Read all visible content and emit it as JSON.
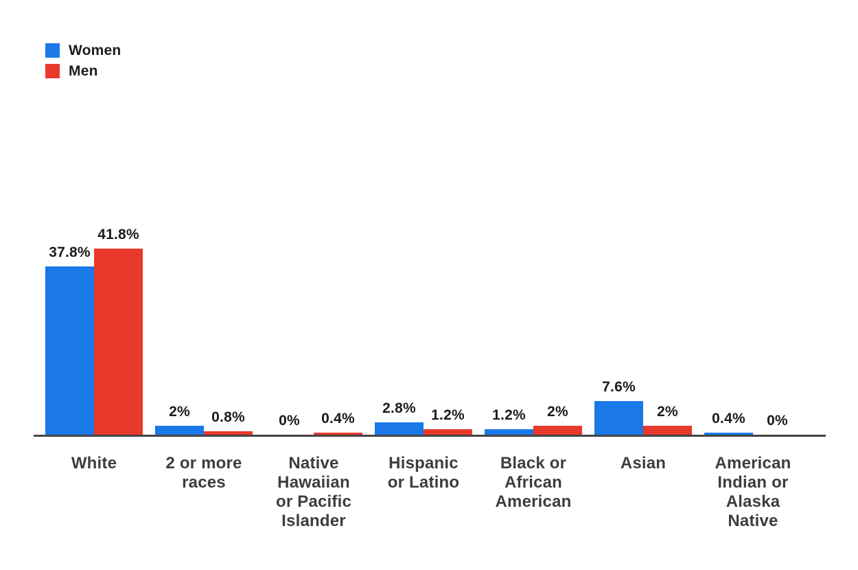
{
  "legend": {
    "items": [
      {
        "label": "Women",
        "color": "#1a78e8"
      },
      {
        "label": "Men",
        "color": "#e8392c"
      }
    ]
  },
  "chart_data": {
    "type": "bar",
    "title": "",
    "xlabel": "",
    "ylabel": "",
    "grid": false,
    "legend_position": "top-left",
    "ylim": [
      0,
      45
    ],
    "unit": "%",
    "categories": [
      "White",
      "2 or more races",
      "Native Hawaiian or Pacific Islander",
      "Hispanic or Latino",
      "Black or African American",
      "Asian",
      "American Indian or Alaska Native"
    ],
    "category_lines": [
      [
        "White"
      ],
      [
        "2 or more",
        "races"
      ],
      [
        "Native",
        "Hawaiian",
        "or Pacific",
        "Islander"
      ],
      [
        "Hispanic",
        "or Latino"
      ],
      [
        "Black or",
        "African",
        "American"
      ],
      [
        "Asian"
      ],
      [
        "American",
        "Indian or",
        "Alaska",
        "Native"
      ]
    ],
    "series": [
      {
        "name": "Women",
        "color": "#1a78e8",
        "values": [
          37.8,
          2,
          0,
          2.8,
          1.2,
          7.6,
          0.4
        ],
        "labels": [
          "37.8%",
          "2%",
          "0%",
          "2.8%",
          "1.2%",
          "7.6%",
          "0.4%"
        ]
      },
      {
        "name": "Men",
        "color": "#e8392c",
        "values": [
          41.8,
          0.8,
          0.4,
          1.2,
          2,
          2,
          0
        ],
        "labels": [
          "41.8%",
          "0.8%",
          "0.4%",
          "1.2%",
          "2%",
          "2%",
          "0%"
        ]
      }
    ],
    "axis_color": "#454545",
    "value_label_color": "#1b1b1b",
    "category_label_color": "#3d3d3d"
  }
}
